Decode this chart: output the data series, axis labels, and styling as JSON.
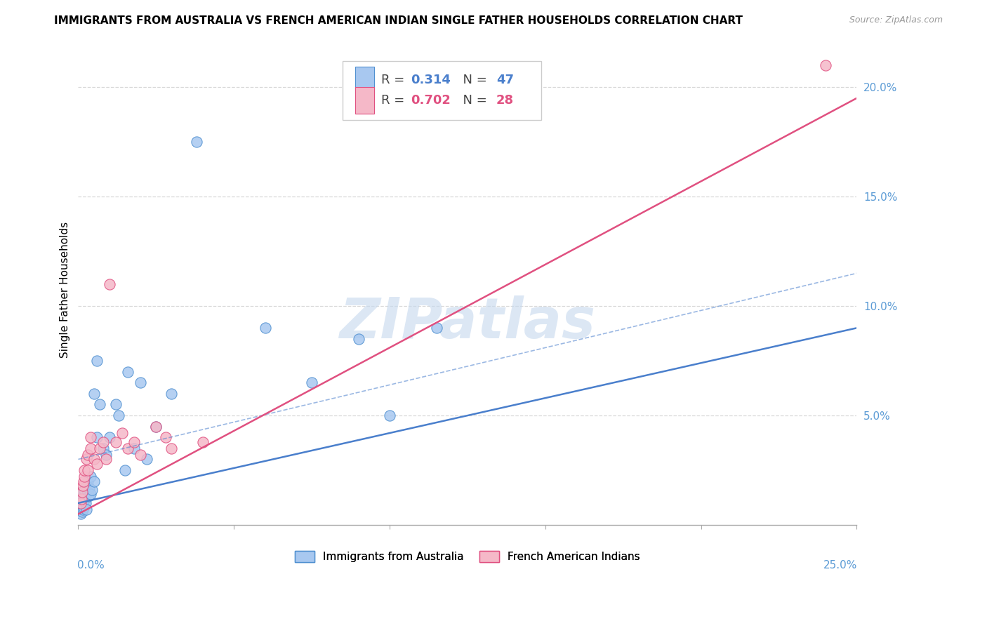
{
  "title": "IMMIGRANTS FROM AUSTRALIA VS FRENCH AMERICAN INDIAN SINGLE FATHER HOUSEHOLDS CORRELATION CHART",
  "source": "Source: ZipAtlas.com",
  "ylabel": "Single Father Households",
  "legend_blue_label": "Immigrants from Australia",
  "legend_pink_label": "French American Indians",
  "blue_color": "#A8C8F0",
  "pink_color": "#F5B8C8",
  "blue_edge_color": "#5090D0",
  "pink_edge_color": "#E05080",
  "blue_line_color": "#4A7FCC",
  "pink_line_color": "#E05080",
  "right_axis_color": "#5B9BD5",
  "yticks_right": [
    "20.0%",
    "15.0%",
    "10.0%",
    "5.0%"
  ],
  "yticks_right_vals": [
    0.2,
    0.15,
    0.1,
    0.05
  ],
  "watermark": "ZIPatlas",
  "background_color": "#ffffff",
  "grid_color": "#d8d8d8",
  "blue_scatter_x": [
    0.0008,
    0.0009,
    0.001,
    0.001,
    0.0012,
    0.0013,
    0.0014,
    0.0015,
    0.0016,
    0.0017,
    0.0018,
    0.002,
    0.002,
    0.0022,
    0.0023,
    0.0025,
    0.0026,
    0.003,
    0.003,
    0.0032,
    0.0035,
    0.004,
    0.004,
    0.0045,
    0.005,
    0.005,
    0.006,
    0.006,
    0.007,
    0.008,
    0.009,
    0.01,
    0.012,
    0.013,
    0.015,
    0.016,
    0.018,
    0.02,
    0.022,
    0.025,
    0.03,
    0.038,
    0.06,
    0.075,
    0.09,
    0.1,
    0.115
  ],
  "blue_scatter_y": [
    0.005,
    0.008,
    0.012,
    0.015,
    0.006,
    0.01,
    0.007,
    0.013,
    0.009,
    0.011,
    0.008,
    0.014,
    0.016,
    0.012,
    0.01,
    0.018,
    0.007,
    0.015,
    0.02,
    0.013,
    0.017,
    0.014,
    0.022,
    0.016,
    0.02,
    0.06,
    0.04,
    0.075,
    0.055,
    0.035,
    0.032,
    0.04,
    0.055,
    0.05,
    0.025,
    0.07,
    0.035,
    0.065,
    0.03,
    0.045,
    0.06,
    0.175,
    0.09,
    0.065,
    0.085,
    0.05,
    0.09
  ],
  "pink_scatter_x": [
    0.0008,
    0.001,
    0.0012,
    0.0015,
    0.0018,
    0.002,
    0.002,
    0.0025,
    0.003,
    0.003,
    0.004,
    0.004,
    0.005,
    0.006,
    0.007,
    0.008,
    0.009,
    0.01,
    0.012,
    0.014,
    0.016,
    0.018,
    0.02,
    0.025,
    0.028,
    0.03,
    0.04,
    0.24
  ],
  "pink_scatter_y": [
    0.01,
    0.012,
    0.015,
    0.018,
    0.02,
    0.022,
    0.025,
    0.03,
    0.025,
    0.032,
    0.035,
    0.04,
    0.03,
    0.028,
    0.035,
    0.038,
    0.03,
    0.11,
    0.038,
    0.042,
    0.035,
    0.038,
    0.032,
    0.045,
    0.04,
    0.035,
    0.038,
    0.21
  ],
  "blue_trendline": [
    0.0,
    0.25,
    0.01,
    0.09
  ],
  "pink_trendline": [
    0.0,
    0.25,
    0.005,
    0.195
  ],
  "blue_dash_upper": [
    0.0,
    0.25,
    0.03,
    0.115
  ],
  "xlim": [
    0.0,
    0.25
  ],
  "ylim": [
    0.0,
    0.215
  ]
}
